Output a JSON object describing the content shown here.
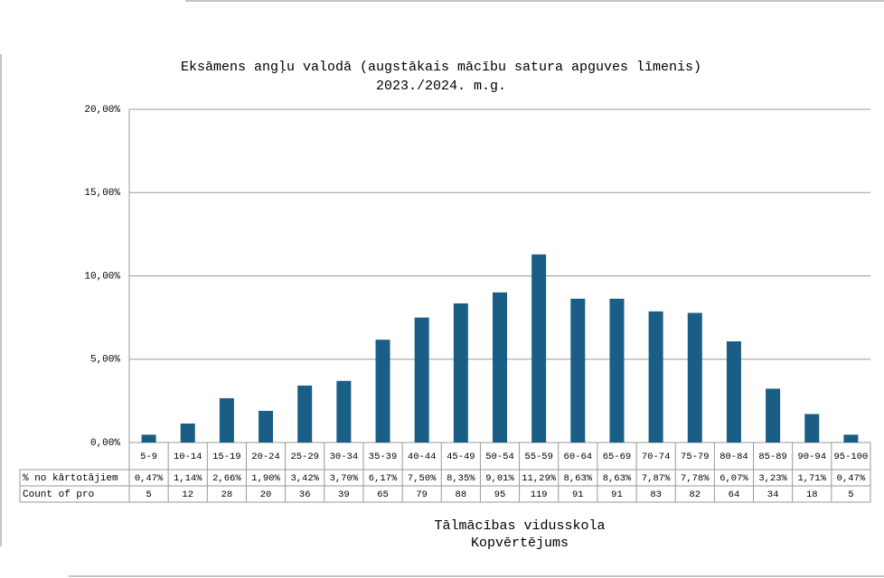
{
  "chart_data": {
    "type": "bar",
    "title": "Eksāmens angļu valodā (augstākais mācību satura apguves līmenis)",
    "subtitle": "2023./2024. m.g.",
    "x_label": "Tālmācības vidusskola",
    "x_sublabel": "Kopvērtējums",
    "categories": [
      "5-9",
      "10-14",
      "15-19",
      "20-24",
      "25-29",
      "30-34",
      "35-39",
      "40-44",
      "45-49",
      "50-54",
      "55-59",
      "60-64",
      "65-69",
      "70-74",
      "75-79",
      "80-84",
      "85-89",
      "90-94",
      "95-100"
    ],
    "series": [
      {
        "name": "% no kārtotājiem",
        "color": "#1a5e85",
        "values": [
          0.47,
          1.14,
          2.66,
          1.9,
          3.42,
          3.7,
          6.17,
          7.5,
          8.35,
          9.01,
          11.29,
          8.63,
          8.63,
          7.87,
          7.78,
          6.07,
          3.23,
          1.71,
          0.47
        ],
        "value_labels": [
          "0,47%",
          "1,14%",
          "2,66%",
          "1,90%",
          "3,42%",
          "3,70%",
          "6,17%",
          "7,50%",
          "8,35%",
          "9,01%",
          "11,29%",
          "8,63%",
          "8,63%",
          "7,87%",
          "7,78%",
          "6,07%",
          "3,23%",
          "1,71%",
          "0,47%"
        ]
      }
    ],
    "counts": {
      "name": "Count of pro",
      "values": [
        5,
        12,
        28,
        20,
        36,
        39,
        65,
        79,
        88,
        95,
        119,
        91,
        91,
        83,
        82,
        64,
        34,
        18,
        5
      ]
    },
    "ylim": [
      0,
      20
    ],
    "yticks": [
      {
        "value": 0,
        "label": "0,00%"
      },
      {
        "value": 5,
        "label": "5,00%"
      },
      {
        "value": 10,
        "label": "10,00%"
      },
      {
        "value": 15,
        "label": "15,00%"
      },
      {
        "value": 20,
        "label": "20,00%"
      }
    ],
    "grid": true
  }
}
